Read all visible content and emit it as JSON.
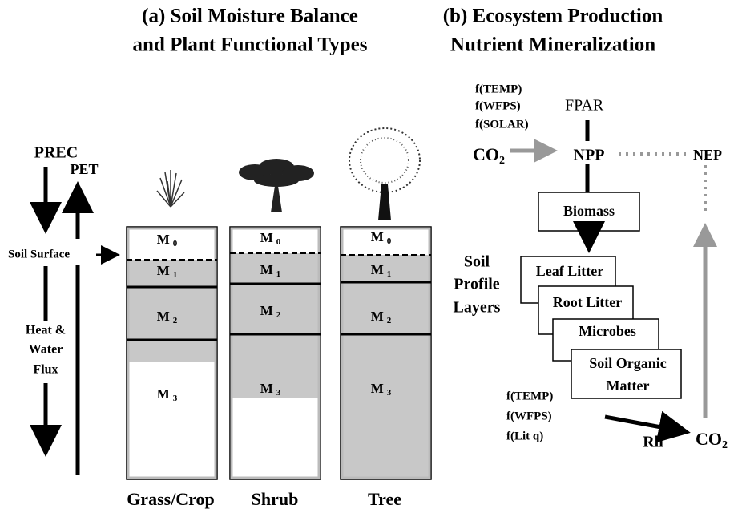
{
  "panel_a": {
    "title": [
      "(a) Soil Moisture Balance",
      "and Plant Functional Types"
    ],
    "prec": "PREC",
    "pet": "PET",
    "soil_surface": "Soil Surface",
    "flux": [
      "Heat &",
      "Water",
      "Flux"
    ],
    "columns": [
      {
        "label": "Grass/Crop",
        "layers": [
          {
            "name": "M",
            "sub": "0"
          },
          {
            "name": "M",
            "sub": "1"
          },
          {
            "name": "M",
            "sub": "2"
          },
          {
            "name": "M",
            "sub": "3"
          }
        ]
      },
      {
        "label": "Shrub",
        "layers": [
          {
            "name": "M",
            "sub": "0"
          },
          {
            "name": "M",
            "sub": "1"
          },
          {
            "name": "M",
            "sub": "2"
          },
          {
            "name": "M",
            "sub": "3"
          }
        ]
      },
      {
        "label": "Tree",
        "layers": [
          {
            "name": "M",
            "sub": "0"
          },
          {
            "name": "M",
            "sub": "1"
          },
          {
            "name": "M",
            "sub": "2"
          },
          {
            "name": "M",
            "sub": "3"
          }
        ]
      }
    ],
    "profile_label": [
      "Soil",
      "Profile",
      "Layers"
    ]
  },
  "panel_b": {
    "title": [
      "(b) Ecosystem Production",
      "Nutrient Mineralization"
    ],
    "npp_factors": [
      "f(TEMP)",
      "f(WFPS)",
      "f(SOLAR)"
    ],
    "fpar": "FPAR",
    "co2_in": {
      "name": "CO",
      "sub": "2"
    },
    "npp": "NPP",
    "nep": "NEP",
    "biomass": "Biomass",
    "pools": [
      [
        "Leaf Litter"
      ],
      [
        "Root Litter"
      ],
      [
        "Microbes"
      ],
      [
        "Soil Organic",
        "Matter"
      ]
    ],
    "rh_factors": [
      "f(TEMP)",
      "f(WFPS)",
      "f(Lit q)"
    ],
    "rh": "Rh",
    "co2_out": {
      "name": "CO",
      "sub": "2"
    }
  }
}
